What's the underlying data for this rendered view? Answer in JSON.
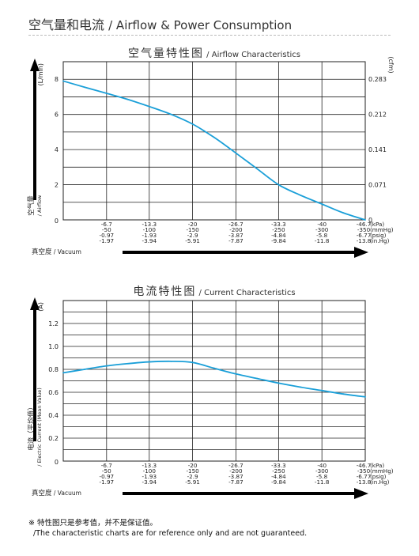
{
  "page": {
    "title_cn": "空气量和电流",
    "title_en": "/ Airflow & Power Consumption",
    "footnote_cn": "※ 特性图只是参考值，并不是保证值。",
    "footnote_en": "/The characteristic charts are for reference only and are not guaranteed."
  },
  "chart_data": [
    {
      "type": "line",
      "title_cn": "空气量特性图",
      "title_en": "/ Airflow Characteristics",
      "ylabel_left_unit": "(L/min)",
      "ylabel_right_unit": "(cfm)",
      "ylabel_cn": "空气量",
      "ylabel_en": "/ Airflow",
      "xlabel_cn": "真空度",
      "xlabel_en": "/ Vacuum",
      "ylim": [
        0,
        9
      ],
      "xlim": [
        0,
        46.7
      ],
      "yticks": [
        {
          "v": 2,
          "label": "2"
        },
        {
          "v": 4,
          "label": "4"
        },
        {
          "v": 6,
          "label": "6"
        },
        {
          "v": 8,
          "label": "8"
        }
      ],
      "yticks_right": [
        {
          "v": 8,
          "label": "0.283"
        },
        {
          "v": 6,
          "label": "0.212"
        },
        {
          "v": 4,
          "label": "0.141"
        },
        {
          "v": 2,
          "label": "0.071"
        },
        {
          "v": 0,
          "label": "0"
        }
      ],
      "origin_label": "0",
      "x_positions": [
        6.7,
        13.3,
        20,
        26.7,
        33.3,
        40,
        46.7
      ],
      "xtick_rows": [
        [
          "-6.7",
          "-13.3",
          "-20",
          "-26.7",
          "-33.3",
          "-40",
          "-46.7"
        ],
        [
          "-50",
          "-100",
          "-150",
          "-200",
          "-250",
          "-300",
          "-350"
        ],
        [
          "-0.97",
          "-1.93",
          "-2.9",
          "-3.87",
          "-4.84",
          "-5.8",
          "-6.77"
        ],
        [
          "-1.97",
          "-3.94",
          "-5.91",
          "-7.87",
          "-9.84",
          "-11.8",
          "-13.8"
        ]
      ],
      "units": [
        "(kPa)",
        "(mmHg)",
        "(psig)",
        "(in.Hg)"
      ],
      "series": [
        {
          "x": [
            0,
            3.3,
            6.7,
            10,
            13.3,
            16.7,
            20,
            23.3,
            26.7,
            30,
            33.3,
            36.7,
            40,
            43.3,
            46.7
          ],
          "y": [
            7.9,
            7.55,
            7.2,
            6.85,
            6.45,
            6.0,
            5.45,
            4.7,
            3.8,
            2.9,
            2.0,
            1.4,
            0.9,
            0.4,
            0.0
          ]
        }
      ],
      "line_color": "#1a9fd8"
    },
    {
      "type": "line",
      "title_cn": "电流特性图",
      "title_en": "/ Current Characteristics",
      "ylabel_left_unit": "(A)",
      "ylabel_cn": "电流（平均值）",
      "ylabel_en": "/ Electric Current (Mean Value)",
      "xlabel_cn": "真空度",
      "xlabel_en": "/ Vacuum",
      "ylim": [
        0,
        1.4
      ],
      "xlim": [
        0,
        46.7
      ],
      "yticks": [
        {
          "v": 0.2,
          "label": "0.2"
        },
        {
          "v": 0.4,
          "label": "0.4"
        },
        {
          "v": 0.6,
          "label": "0.6"
        },
        {
          "v": 0.8,
          "label": "0.8"
        },
        {
          "v": 1.0,
          "label": "1.0"
        },
        {
          "v": 1.2,
          "label": "1.2"
        }
      ],
      "origin_label": "0",
      "x_positions": [
        6.7,
        13.3,
        20,
        26.7,
        33.3,
        40,
        46.7
      ],
      "xtick_rows": [
        [
          "-6.7",
          "-13.3",
          "-20",
          "-26.7",
          "-33.3",
          "-40",
          "-46.7"
        ],
        [
          "-50",
          "-100",
          "-150",
          "-200",
          "-250",
          "-300",
          "-350"
        ],
        [
          "-0.97",
          "-1.93",
          "-2.9",
          "-3.87",
          "-4.84",
          "-5.8",
          "-6.77"
        ],
        [
          "-1.97",
          "-3.94",
          "-5.91",
          "-7.87",
          "-9.84",
          "-11.8",
          "-13.8"
        ]
      ],
      "units": [
        "(kPa)",
        "(mmHg)",
        "(psig)",
        "(in.Hg)"
      ],
      "series": [
        {
          "x": [
            0,
            3.3,
            6.7,
            10,
            13.3,
            16.7,
            20,
            23.3,
            26.7,
            30,
            33.3,
            36.7,
            40,
            43.3,
            46.7
          ],
          "y": [
            0.77,
            0.8,
            0.83,
            0.85,
            0.865,
            0.87,
            0.86,
            0.81,
            0.76,
            0.72,
            0.68,
            0.645,
            0.615,
            0.585,
            0.56
          ]
        }
      ],
      "line_color": "#1a9fd8"
    }
  ]
}
